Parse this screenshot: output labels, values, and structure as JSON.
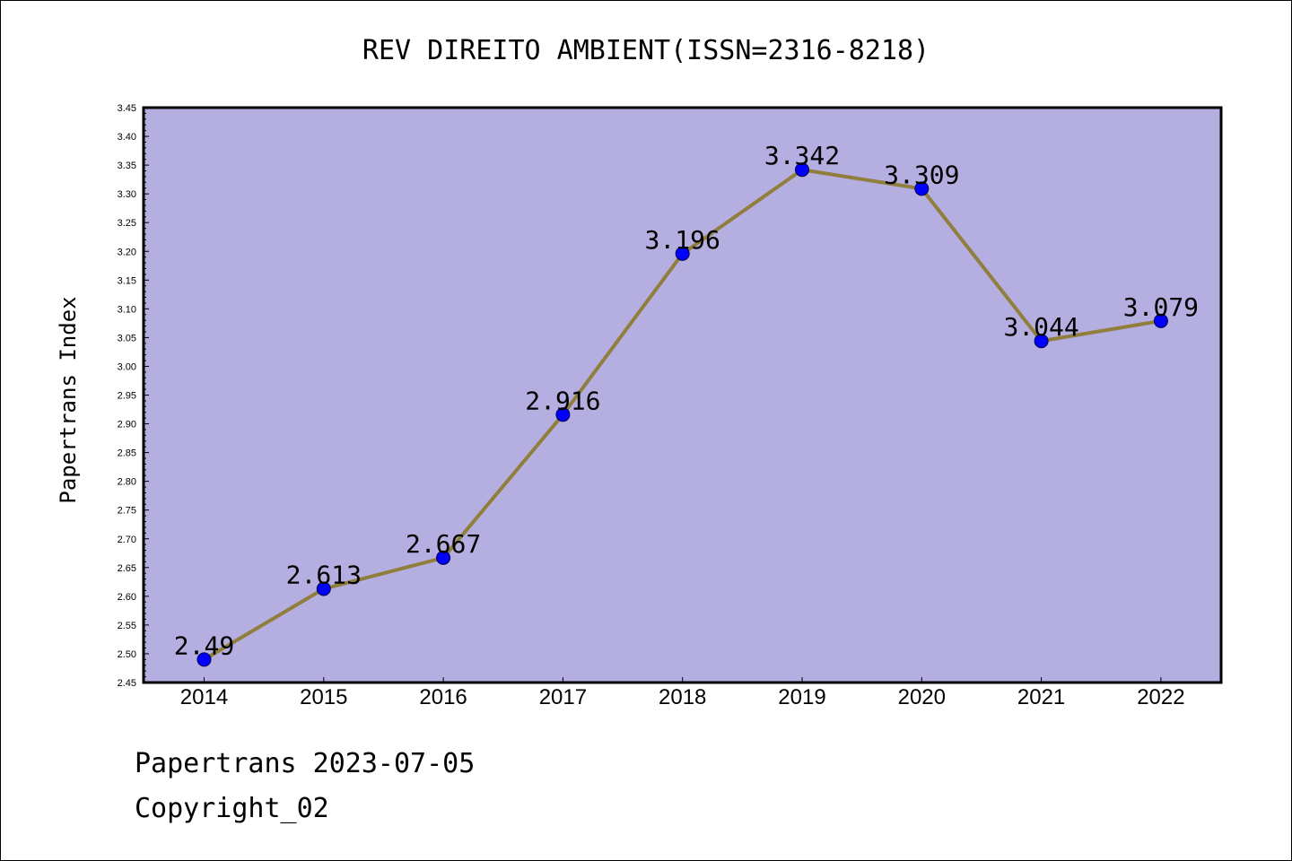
{
  "chart_data": {
    "type": "line",
    "title": "REV DIREITO AMBIENT(ISSN=2316-8218)",
    "xlabel": "",
    "ylabel": "Papertrans Index",
    "x": [
      "2014",
      "2015",
      "2016",
      "2017",
      "2018",
      "2019",
      "2020",
      "2021",
      "2022"
    ],
    "series": [
      {
        "values": [
          2.49,
          2.613,
          2.667,
          2.916,
          3.196,
          3.342,
          3.309,
          3.044,
          3.079
        ],
        "labels": [
          "2.49",
          "2.613",
          "2.667",
          "2.916",
          "3.196",
          "3.342",
          "3.309",
          "3.044",
          "3.079"
        ]
      }
    ],
    "ylim": [
      2.45,
      3.45
    ],
    "ytick_step": 0.05,
    "yticks": [
      "2.45",
      "2.50",
      "2.55",
      "2.60",
      "2.65",
      "2.70",
      "2.75",
      "2.80",
      "2.85",
      "2.90",
      "2.95",
      "3.00",
      "3.05",
      "3.10",
      "3.15",
      "3.20",
      "3.25",
      "3.30",
      "3.35",
      "3.40",
      "3.45"
    ],
    "grid": false,
    "legend": "none",
    "colors": {
      "plot_background": "#b5aee1",
      "line": "#8f7e3c",
      "marker": "#0000ff",
      "marker_edge": "#000044"
    }
  },
  "footer": {
    "line1": "Papertrans 2023-07-05",
    "line2": "Copyright_02"
  }
}
